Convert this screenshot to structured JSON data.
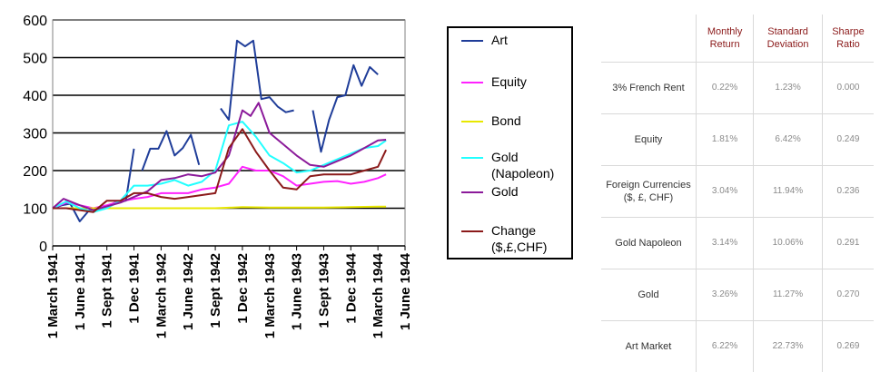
{
  "chart_data": {
    "type": "line",
    "ylim": [
      0,
      600
    ],
    "yticks": [
      "0",
      "100",
      "200",
      "300",
      "400",
      "500",
      "600"
    ],
    "xticks": [
      "1 March 1941",
      "1 June 1941",
      "1 Sept 1941",
      "1 Dec 1941",
      "1 March 1942",
      "1 June 1942",
      "1 Sept 1942",
      "1 Dec 1942",
      "1 March 1943",
      "1 June 1943",
      "1 Sept 1943",
      "1 Dec 1944",
      "1 March 1944",
      "1 June 1944"
    ],
    "grid": true,
    "legend_position": "right",
    "series": [
      {
        "name": "Art",
        "color": "#1f3d99",
        "points": [
          [
            0,
            100
          ],
          [
            0.35,
            108
          ],
          [
            0.65,
            112
          ],
          [
            1,
            65
          ],
          [
            1.35,
            95
          ],
          [
            1.7,
            100
          ],
          [
            2,
            105
          ],
          [
            2.3,
            115
          ],
          [
            2.7,
            120
          ],
          [
            3,
            258
          ],
          [
            null,
            null
          ],
          [
            3.3,
            200
          ],
          [
            3.6,
            258
          ],
          [
            3.9,
            258
          ],
          [
            4.2,
            305
          ],
          [
            4.5,
            240
          ],
          [
            4.8,
            260
          ],
          [
            5.1,
            295
          ],
          [
            5.4,
            215
          ],
          [
            null,
            null
          ],
          [
            6.2,
            365
          ],
          [
            6.5,
            335
          ],
          [
            6.8,
            545
          ],
          [
            7.1,
            530
          ],
          [
            7.4,
            545
          ],
          [
            7.7,
            390
          ],
          [
            8,
            395
          ],
          [
            8.3,
            370
          ],
          [
            8.6,
            355
          ],
          [
            8.9,
            360
          ],
          [
            null,
            null
          ],
          [
            9.6,
            360
          ],
          [
            9.9,
            250
          ],
          [
            10.2,
            335
          ],
          [
            10.5,
            395
          ],
          [
            10.8,
            400
          ],
          [
            11.1,
            480
          ],
          [
            11.4,
            425
          ],
          [
            11.7,
            475
          ],
          [
            12,
            455
          ]
        ]
      },
      {
        "name": "Equity",
        "color": "#ff22ff",
        "points": [
          [
            0,
            100
          ],
          [
            0.5,
            115
          ],
          [
            1,
            108
          ],
          [
            1.5,
            100
          ],
          [
            2,
            108
          ],
          [
            2.5,
            118
          ],
          [
            3,
            125
          ],
          [
            3.5,
            130
          ],
          [
            4,
            140
          ],
          [
            4.5,
            140
          ],
          [
            5,
            140
          ],
          [
            5.5,
            150
          ],
          [
            6,
            155
          ],
          [
            6.5,
            165
          ],
          [
            7,
            210
          ],
          [
            7.5,
            200
          ],
          [
            8,
            200
          ],
          [
            8.5,
            185
          ],
          [
            9,
            160
          ],
          [
            9.5,
            165
          ],
          [
            10,
            170
          ],
          [
            10.5,
            172
          ],
          [
            11,
            165
          ],
          [
            11.5,
            170
          ],
          [
            12,
            180
          ],
          [
            12.3,
            190
          ]
        ]
      },
      {
        "name": "Bond",
        "color": "#e8e800",
        "points": [
          [
            0,
            100
          ],
          [
            1,
            100
          ],
          [
            2,
            100
          ],
          [
            3,
            100
          ],
          [
            4,
            100
          ],
          [
            5,
            100
          ],
          [
            6,
            100
          ],
          [
            7,
            103
          ],
          [
            8,
            102
          ],
          [
            9,
            102
          ],
          [
            10,
            102
          ],
          [
            11,
            103
          ],
          [
            12,
            104
          ],
          [
            12.3,
            104
          ]
        ]
      },
      {
        "name": "Gold\n(Napoleon)",
        "color": "#22ffff",
        "points": [
          [
            0,
            100
          ],
          [
            0.5,
            118
          ],
          [
            1,
            100
          ],
          [
            1.5,
            90
          ],
          [
            2,
            100
          ],
          [
            2.5,
            120
          ],
          [
            3,
            160
          ],
          [
            3.5,
            160
          ],
          [
            4,
            165
          ],
          [
            4.5,
            175
          ],
          [
            5,
            160
          ],
          [
            5.5,
            170
          ],
          [
            6,
            200
          ],
          [
            6.5,
            320
          ],
          [
            7,
            330
          ],
          [
            7.5,
            290
          ],
          [
            8,
            240
          ],
          [
            8.5,
            220
          ],
          [
            9,
            195
          ],
          [
            9.5,
            200
          ],
          [
            10,
            215
          ],
          [
            10.5,
            230
          ],
          [
            11,
            245
          ],
          [
            11.5,
            260
          ],
          [
            12,
            265
          ],
          [
            12.3,
            280
          ]
        ]
      },
      {
        "name": "Gold",
        "color": "#8b1a9a",
        "points": [
          [
            0,
            100
          ],
          [
            0.4,
            125
          ],
          [
            1,
            108
          ],
          [
            1.5,
            95
          ],
          [
            2,
            105
          ],
          [
            2.5,
            115
          ],
          [
            3,
            130
          ],
          [
            3.5,
            145
          ],
          [
            4,
            175
          ],
          [
            4.5,
            180
          ],
          [
            5,
            190
          ],
          [
            5.5,
            185
          ],
          [
            6,
            195
          ],
          [
            6.5,
            240
          ],
          [
            7,
            360
          ],
          [
            7.3,
            345
          ],
          [
            7.6,
            380
          ],
          [
            8,
            300
          ],
          [
            8.5,
            270
          ],
          [
            9,
            240
          ],
          [
            9.5,
            215
          ],
          [
            10,
            210
          ],
          [
            10.5,
            225
          ],
          [
            11,
            240
          ],
          [
            11.5,
            260
          ],
          [
            12,
            280
          ],
          [
            12.3,
            282
          ]
        ]
      },
      {
        "name": "Change\n($,£,CHF)",
        "color": "#8b1a1a",
        "points": [
          [
            0,
            100
          ],
          [
            0.5,
            100
          ],
          [
            1,
            95
          ],
          [
            1.5,
            90
          ],
          [
            2,
            120
          ],
          [
            2.5,
            120
          ],
          [
            3,
            140
          ],
          [
            3.5,
            140
          ],
          [
            4,
            130
          ],
          [
            4.5,
            125
          ],
          [
            5,
            130
          ],
          [
            5.5,
            135
          ],
          [
            6,
            140
          ],
          [
            6.5,
            260
          ],
          [
            7,
            310
          ],
          [
            7.5,
            250
          ],
          [
            8,
            200
          ],
          [
            8.5,
            155
          ],
          [
            9,
            150
          ],
          [
            9.5,
            185
          ],
          [
            10,
            190
          ],
          [
            10.5,
            190
          ],
          [
            11,
            190
          ],
          [
            11.5,
            200
          ],
          [
            12,
            210
          ],
          [
            12.3,
            255
          ]
        ]
      }
    ]
  },
  "table": {
    "headers": [
      "",
      "Monthly Return",
      "Standard Deviation",
      "Sharpe Ratio"
    ],
    "rows": [
      [
        "3% French Rent",
        "0.22%",
        "1.23%",
        "0.000"
      ],
      [
        "Equity",
        "1.81%",
        "6.42%",
        "0.249"
      ],
      [
        "Foreign Currencies ($, £, CHF)",
        "3.04%",
        "11.94%",
        "0.236"
      ],
      [
        "Gold Napoleon",
        "3.14%",
        "10.06%",
        "0.291"
      ],
      [
        "Gold",
        "3.26%",
        "11.27%",
        "0.270"
      ],
      [
        "Art Market",
        "6.22%",
        "22.73%",
        "0.269"
      ]
    ]
  }
}
